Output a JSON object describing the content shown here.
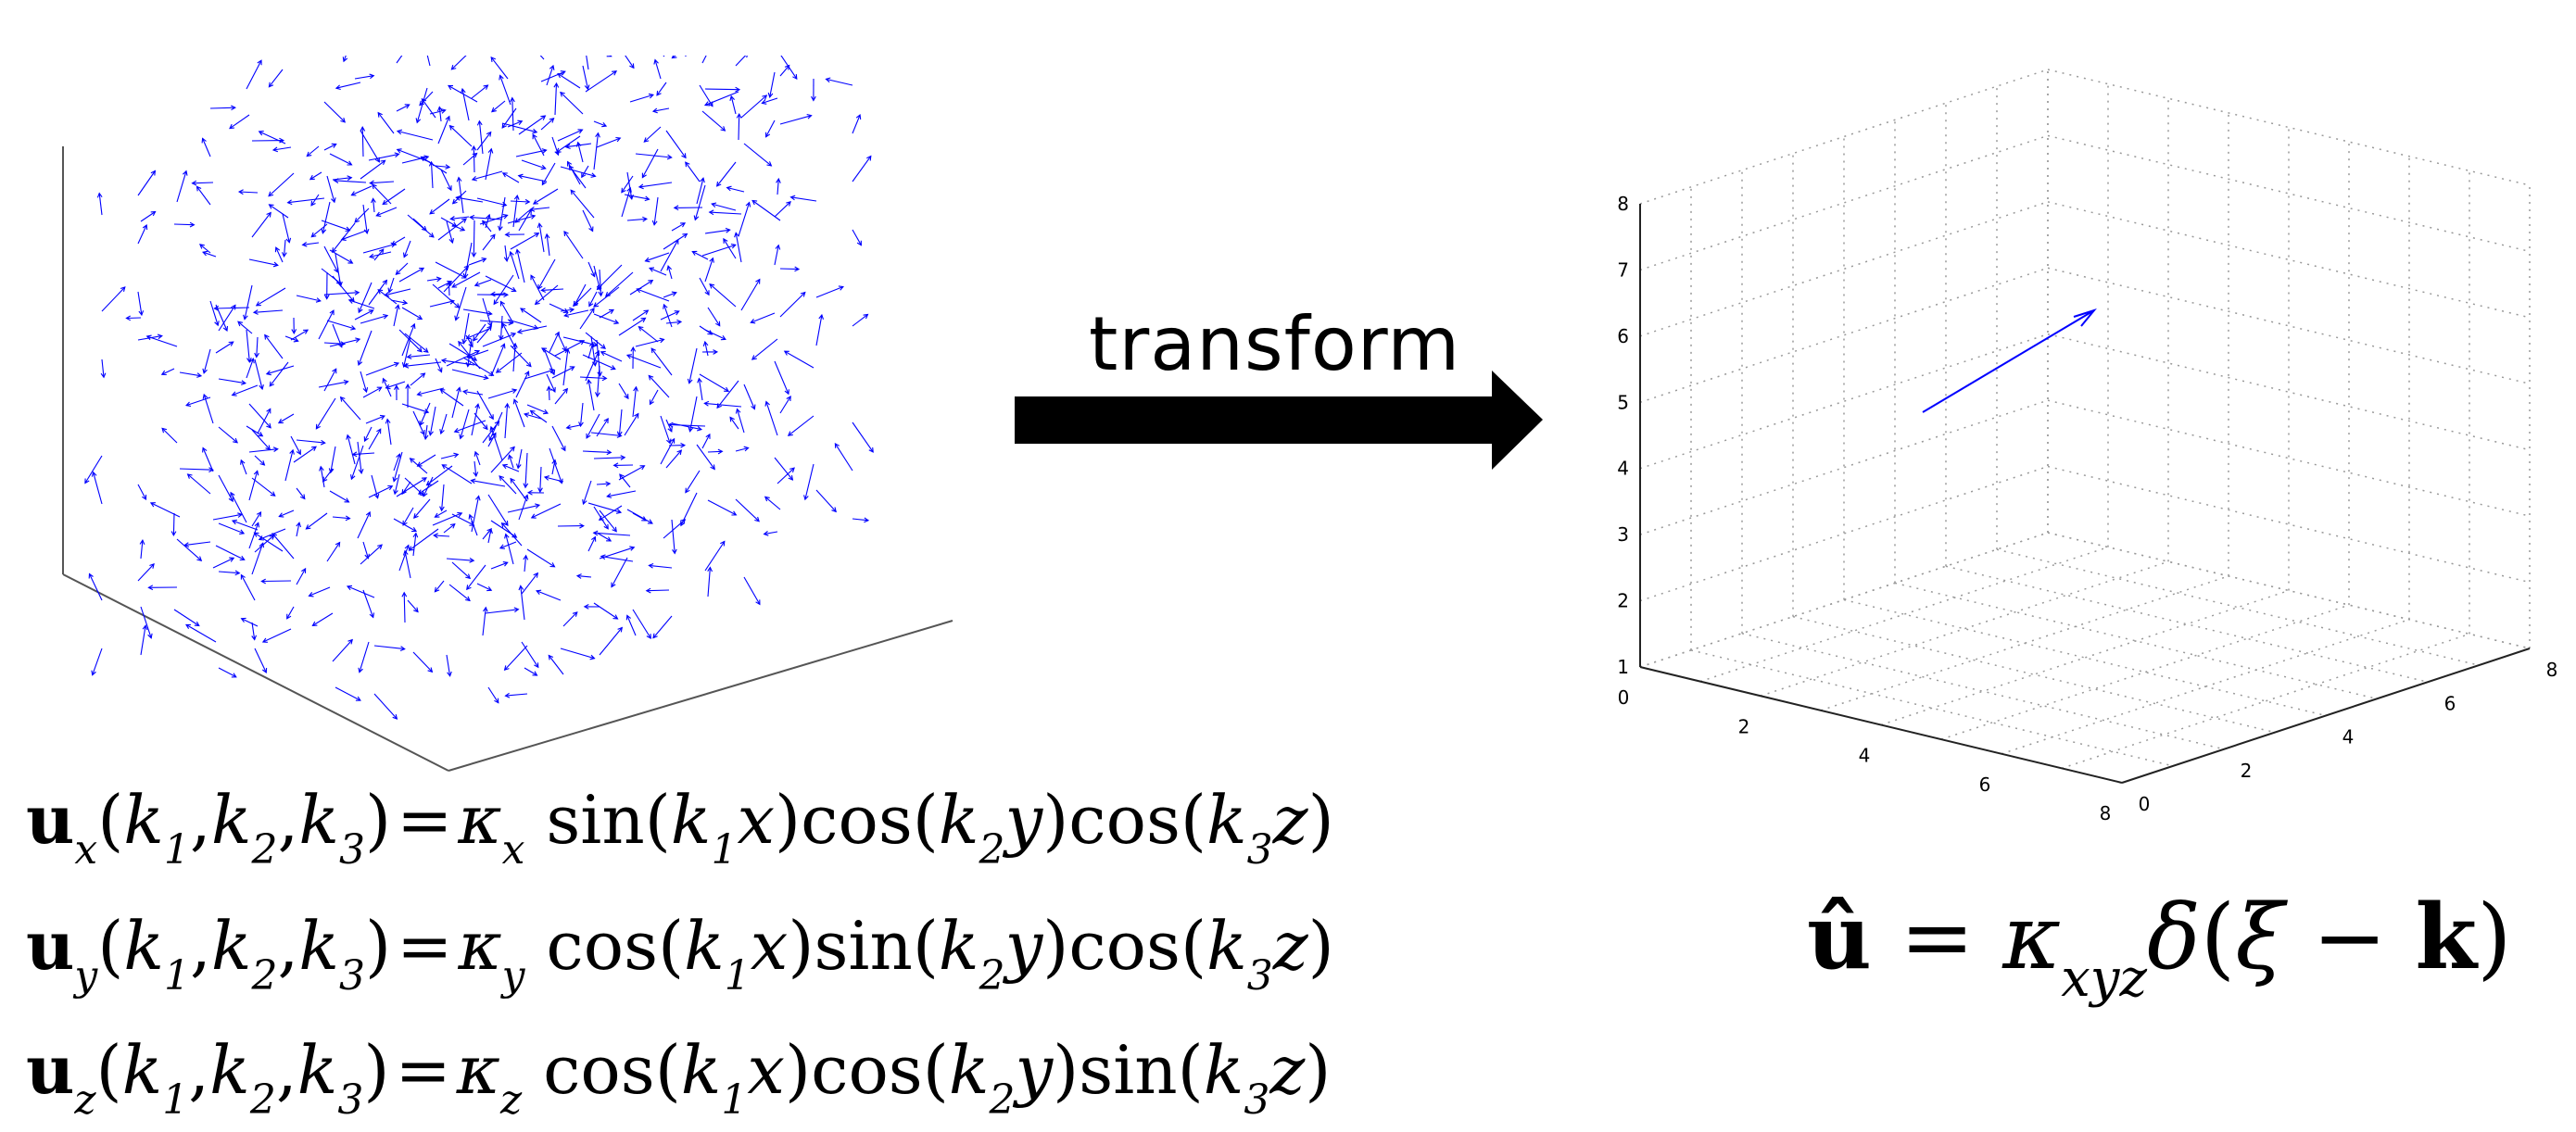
{
  "diagram": {
    "arrow_label": "transform",
    "left_plot": {
      "type": "3d-quiver",
      "arrow_color": "#0000ff"
    },
    "right_plot": {
      "type": "3d-quiver",
      "arrow_color": "#0000ff",
      "x_ticks": [
        "0",
        "2",
        "4",
        "6",
        "8"
      ],
      "y_ticks": [
        "0",
        "2",
        "4",
        "6",
        "8"
      ],
      "z_ticks": [
        "1",
        "2",
        "3",
        "4",
        "5",
        "6",
        "7",
        "8"
      ]
    },
    "equations": {
      "ux": {
        "comp": "x",
        "kappa_sub": "x",
        "f1": "sin",
        "f2": "cos",
        "f3": "cos"
      },
      "uy": {
        "comp": "y",
        "kappa_sub": "y",
        "f1": "cos",
        "f2": "sin",
        "f3": "cos"
      },
      "uz": {
        "comp": "z",
        "kappa_sub": "z",
        "f1": "cos",
        "f2": "cos",
        "f3": "sin"
      }
    },
    "transform_equation": {
      "lhs": "û",
      "kappa_sub": "xyz",
      "delta": "δ",
      "xi": "ξ",
      "k": "k"
    }
  }
}
